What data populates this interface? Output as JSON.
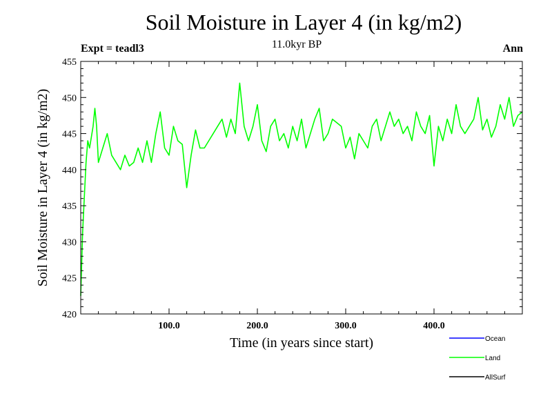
{
  "chart_data": {
    "type": "line",
    "title": "Soil Moisture in Layer 4 (in kg/m2)",
    "subtitle": "11.0kyr BP",
    "expt_label": "Expt = teadl3",
    "period_label": "Ann",
    "xlabel": "Time (in years since start)",
    "ylabel": "Soil Moisture in Layer 4 (in kg/m2)",
    "xlim": [
      0,
      500
    ],
    "ylim": [
      420,
      455
    ],
    "x_ticks": [
      100,
      200,
      300,
      400
    ],
    "x_tick_labels": [
      "100.0",
      "200.0",
      "300.0",
      "400.0"
    ],
    "y_ticks": [
      420,
      425,
      430,
      435,
      440,
      445,
      450,
      455
    ],
    "y_tick_labels": [
      "420",
      "425",
      "430",
      "435",
      "440",
      "445",
      "450",
      "455"
    ],
    "legend": [
      {
        "name": "Ocean",
        "color": "#0000ff"
      },
      {
        "name": "Land",
        "color": "#00ff00"
      },
      {
        "name": "AllSurf",
        "color": "#000000"
      }
    ],
    "series": [
      {
        "name": "Land",
        "color": "#00ff00",
        "x": [
          0,
          2,
          4,
          6,
          8,
          10,
          12,
          14,
          16,
          18,
          20,
          25,
          30,
          35,
          40,
          45,
          50,
          55,
          60,
          65,
          70,
          75,
          80,
          85,
          90,
          95,
          100,
          105,
          110,
          115,
          120,
          125,
          130,
          135,
          140,
          145,
          150,
          155,
          160,
          165,
          170,
          175,
          180,
          185,
          190,
          195,
          200,
          205,
          210,
          215,
          220,
          225,
          230,
          235,
          240,
          245,
          250,
          255,
          260,
          265,
          270,
          275,
          280,
          285,
          290,
          295,
          300,
          305,
          310,
          315,
          320,
          325,
          330,
          335,
          340,
          345,
          350,
          355,
          360,
          365,
          370,
          375,
          380,
          385,
          390,
          395,
          400,
          405,
          410,
          415,
          420,
          425,
          430,
          435,
          440,
          445,
          450,
          455,
          460,
          465,
          470,
          475,
          480,
          485,
          490,
          495,
          500
        ],
        "values": [
          422.5,
          431,
          436,
          441,
          444,
          443,
          444.5,
          446,
          448.5,
          446,
          441,
          443,
          445,
          442,
          441,
          440,
          442,
          440.5,
          441,
          443,
          441,
          444,
          441,
          445,
          448,
          443,
          442,
          446,
          444,
          443.5,
          437.5,
          442,
          445.5,
          443,
          443,
          444,
          445,
          446,
          447,
          444.5,
          447,
          445,
          452,
          446,
          444,
          446,
          449,
          444,
          442.5,
          446,
          447,
          444,
          445,
          443,
          446,
          444,
          447,
          443,
          445,
          447,
          448.5,
          444,
          445,
          447,
          446.5,
          446,
          443,
          444.5,
          441.5,
          445,
          444,
          443,
          446,
          447,
          444,
          446,
          448,
          446,
          447,
          445,
          446,
          444,
          448,
          446,
          445,
          447.5,
          440.5,
          446,
          444,
          447,
          445,
          449,
          446,
          445,
          446,
          447,
          450,
          445.5,
          447,
          444.5,
          446,
          449,
          447,
          450,
          446,
          447.5,
          448
        ]
      },
      {
        "name": "Ocean",
        "color": "#0000ff",
        "x": [],
        "values": []
      },
      {
        "name": "AllSurf",
        "color": "#000000",
        "x": [],
        "values": []
      }
    ]
  }
}
